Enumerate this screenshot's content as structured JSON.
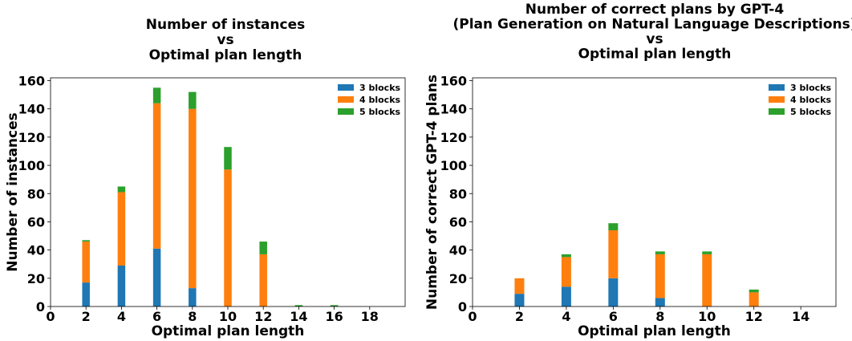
{
  "colors": {
    "3 blocks": "#1f77b4",
    "4 blocks": "#ff7f0e",
    "5 blocks": "#2ca02c"
  },
  "chart_data": [
    {
      "type": "bar",
      "stacked": true,
      "title_lines": [
        "Number of instances",
        "vs",
        "Optimal plan length"
      ],
      "xlabel": "Optimal plan length",
      "ylabel": "Number of instances",
      "x": [
        2,
        4,
        6,
        8,
        10,
        12,
        14,
        16
      ],
      "series": [
        {
          "name": "3 blocks",
          "values": [
            17,
            29,
            41,
            13,
            0,
            0,
            0,
            0
          ]
        },
        {
          "name": "4 blocks",
          "values": [
            29,
            52,
            103,
            127,
            97,
            37,
            0,
            0
          ]
        },
        {
          "name": "5 blocks",
          "values": [
            1,
            4,
            11,
            12,
            16,
            9,
            1,
            1
          ]
        }
      ],
      "xlim": [
        0,
        20
      ],
      "ylim": [
        0,
        162
      ],
      "xticks": [
        0,
        2,
        4,
        6,
        8,
        10,
        12,
        14,
        16,
        18
      ],
      "yticks": [
        0,
        20,
        40,
        60,
        80,
        100,
        120,
        140,
        160
      ],
      "legend": "top-right",
      "grid": false
    },
    {
      "type": "bar",
      "stacked": true,
      "title_lines": [
        "Number of correct plans by GPT-4",
        "(Plan Generation on Natural Language Descriptions)",
        "vs",
        "Optimal plan length"
      ],
      "xlabel": "Optimal plan length",
      "ylabel": "Number of correct GPT-4 plans",
      "x": [
        2,
        4,
        6,
        8,
        10,
        12
      ],
      "series": [
        {
          "name": "3 blocks",
          "values": [
            9,
            14,
            20,
            6,
            0,
            0
          ]
        },
        {
          "name": "4 blocks",
          "values": [
            11,
            21,
            34,
            31,
            37,
            10
          ]
        },
        {
          "name": "5 blocks",
          "values": [
            0,
            2,
            5,
            2,
            2,
            2
          ]
        }
      ],
      "xlim": [
        0,
        15.5
      ],
      "ylim": [
        0,
        162
      ],
      "xticks": [
        0,
        2,
        4,
        6,
        8,
        10,
        12,
        14
      ],
      "yticks": [
        0,
        20,
        40,
        60,
        80,
        100,
        120,
        140,
        160
      ],
      "legend": "top-right",
      "grid": false
    }
  ]
}
